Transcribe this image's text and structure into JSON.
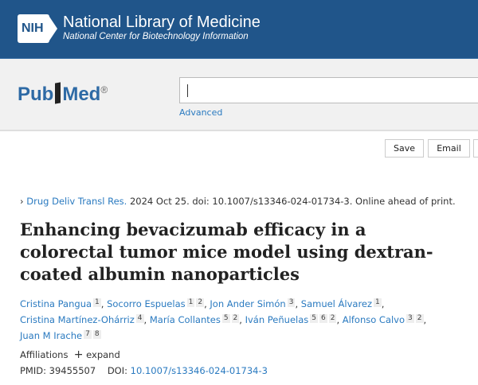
{
  "header": {
    "logo": "NIH",
    "title": "National Library of Medicine",
    "subtitle": "National Center for Biotechnology Information"
  },
  "search": {
    "logo": "PubMed",
    "registered": "®",
    "value": "",
    "advanced": "Advanced"
  },
  "actions": [
    "Save",
    "Email"
  ],
  "article": {
    "journal": "Drug Deliv Transl Res.",
    "citation": " 2024 Oct 25. doi: 10.1007/s13346-024-01734-3. Online ahead of print.",
    "title": "Enhancing bevacizumab efficacy in a colorectal tumor mice model using dextran-coated albumin nanoparticles",
    "authors": [
      {
        "name": "Cristina Pangua",
        "aff": [
          "1"
        ]
      },
      {
        "name": "Socorro Espuelas",
        "aff": [
          "1",
          "2"
        ]
      },
      {
        "name": "Jon Ander Simón",
        "aff": [
          "3"
        ]
      },
      {
        "name": "Samuel Álvarez",
        "aff": [
          "1"
        ]
      },
      {
        "name": "Cristina Martínez-Ohárriz",
        "aff": [
          "4"
        ]
      },
      {
        "name": "María Collantes",
        "aff": [
          "5",
          "2"
        ]
      },
      {
        "name": "Iván Peñuelas",
        "aff": [
          "5",
          "6",
          "2"
        ]
      },
      {
        "name": "Alfonso Calvo",
        "aff": [
          "3",
          "2"
        ]
      },
      {
        "name": "Juan M Irache",
        "aff": [
          "7",
          "8"
        ]
      }
    ],
    "affiliations_label": "Affiliations",
    "expand": "expand",
    "pmid_label": "PMID: ",
    "pmid": "39455507",
    "doi_label": "DOI: ",
    "doi": "10.1007/s13346-024-01734-3"
  }
}
